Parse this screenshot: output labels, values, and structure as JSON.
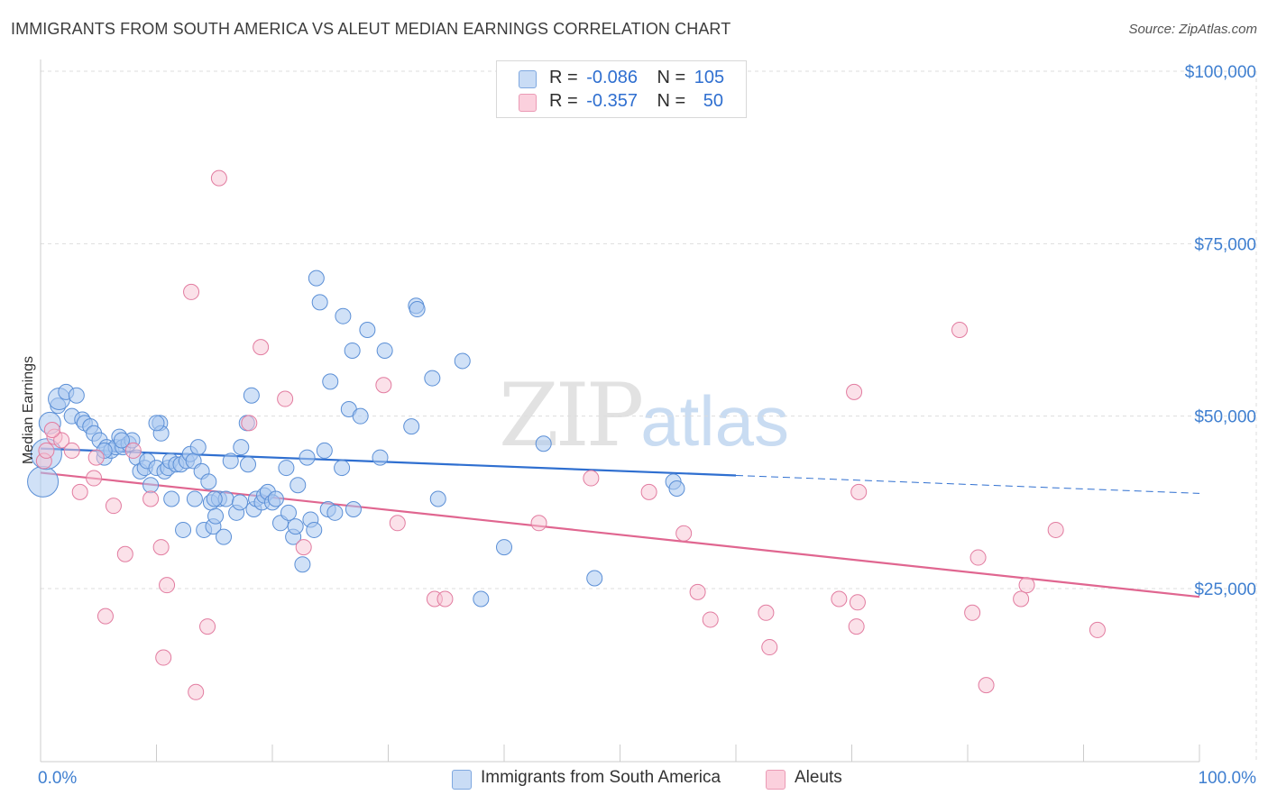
{
  "header": {
    "title": "IMMIGRANTS FROM SOUTH AMERICA VS ALEUT MEDIAN EARNINGS CORRELATION CHART",
    "source": "Source: ZipAtlas.com"
  },
  "watermark": {
    "zip": "ZIP",
    "atlas": "atlas"
  },
  "legend": {
    "rows": [
      {
        "r_label": "R =",
        "r_value": "-0.086",
        "n_label": "N =",
        "n_value": "105",
        "color": "#aac8f0"
      },
      {
        "r_label": "R =",
        "r_value": "-0.357",
        "n_label": "N =",
        "n_value": "50",
        "color": "#f5b8cc"
      }
    ]
  },
  "bottom_legend": {
    "series1": "Immigrants from South America",
    "series2": "Aleuts"
  },
  "colors": {
    "blue_fill": "#aac8f0",
    "blue_stroke": "#5b8fd6",
    "blue_line": "#2f6fd0",
    "pink_fill": "#f8c3d3",
    "pink_stroke": "#e27ca0",
    "pink_line": "#e06690",
    "grid": "#dddddd",
    "tick_text": "#3f7fd0"
  },
  "chart_data": {
    "type": "scatter",
    "title": "IMMIGRANTS FROM SOUTH AMERICA VS ALEUT MEDIAN EARNINGS CORRELATION CHART",
    "xlabel": "",
    "ylabel": "Median Earnings",
    "xlim": [
      0,
      100
    ],
    "ylim": [
      0,
      105000
    ],
    "x_tick_labels": [
      "0.0%",
      "100.0%"
    ],
    "y_ticks": [
      25000,
      50000,
      75000,
      100000
    ],
    "y_tick_labels": [
      "$25,000",
      "$50,000",
      "$75,000",
      "$100,000"
    ],
    "series": [
      {
        "name": "Immigrants from South America",
        "R": -0.086,
        "N": 105,
        "trend": {
          "x": [
            0,
            60
          ],
          "y": [
            45300,
            41400
          ],
          "dashed_x": [
            60,
            100
          ],
          "dashed_y": [
            41400,
            38800
          ]
        },
        "points": [
          [
            0.2,
            40500,
            "xl"
          ],
          [
            0.5,
            44500,
            "xl"
          ],
          [
            0.8,
            49000,
            "l"
          ],
          [
            1.5,
            51500
          ],
          [
            1.6,
            52500,
            "l"
          ],
          [
            2.2,
            53500
          ],
          [
            2.7,
            50000
          ],
          [
            3.1,
            53000
          ],
          [
            3.6,
            49500
          ],
          [
            3.8,
            49000
          ],
          [
            4.3,
            48500
          ],
          [
            4.6,
            47500
          ],
          [
            5.1,
            46500
          ],
          [
            5.5,
            44000
          ],
          [
            5.7,
            45500
          ],
          [
            6.1,
            45000
          ],
          [
            6.5,
            45500
          ],
          [
            6.8,
            47000
          ],
          [
            7.1,
            45500
          ],
          [
            7.6,
            46000
          ],
          [
            7.9,
            46500
          ],
          [
            8.3,
            44000
          ],
          [
            8.6,
            42000
          ],
          [
            9.0,
            42500
          ],
          [
            9.2,
            43500
          ],
          [
            9.5,
            40000
          ],
          [
            10.0,
            42500
          ],
          [
            10.3,
            49000
          ],
          [
            10.4,
            47500
          ],
          [
            10.7,
            42000
          ],
          [
            11.0,
            42500
          ],
          [
            11.2,
            43500
          ],
          [
            11.3,
            38000
          ],
          [
            11.7,
            43000
          ],
          [
            12.1,
            43000
          ],
          [
            12.3,
            33500
          ],
          [
            12.6,
            43500
          ],
          [
            12.9,
            44500
          ],
          [
            13.2,
            43500
          ],
          [
            13.3,
            38000
          ],
          [
            13.6,
            45500
          ],
          [
            13.9,
            42000
          ],
          [
            14.1,
            33500
          ],
          [
            14.5,
            40500
          ],
          [
            14.7,
            37500
          ],
          [
            14.9,
            34000
          ],
          [
            15.1,
            35500
          ],
          [
            15.4,
            38000
          ],
          [
            15.8,
            32500
          ],
          [
            16.0,
            38000
          ],
          [
            16.4,
            43500
          ],
          [
            16.9,
            36000
          ],
          [
            17.2,
            37500
          ],
          [
            17.3,
            45500
          ],
          [
            17.8,
            49000
          ],
          [
            17.9,
            43000
          ],
          [
            18.2,
            53000
          ],
          [
            18.4,
            36500
          ],
          [
            18.6,
            38000
          ],
          [
            19.1,
            37500
          ],
          [
            19.3,
            38500
          ],
          [
            19.6,
            39000
          ],
          [
            20.0,
            37500
          ],
          [
            20.3,
            38000
          ],
          [
            20.7,
            34500
          ],
          [
            21.2,
            42500
          ],
          [
            21.4,
            36000
          ],
          [
            21.8,
            32500
          ],
          [
            22.0,
            34000
          ],
          [
            22.2,
            40000
          ],
          [
            22.6,
            28500
          ],
          [
            23.0,
            44000
          ],
          [
            23.3,
            35000
          ],
          [
            23.6,
            33500
          ],
          [
            23.8,
            70000
          ],
          [
            24.1,
            66500
          ],
          [
            24.5,
            45000
          ],
          [
            24.8,
            36500
          ],
          [
            25.0,
            55000
          ],
          [
            25.4,
            36000
          ],
          [
            26.0,
            42500
          ],
          [
            26.1,
            64500
          ],
          [
            26.6,
            51000
          ],
          [
            26.9,
            59500
          ],
          [
            27.0,
            36500
          ],
          [
            27.6,
            50000
          ],
          [
            28.2,
            62500
          ],
          [
            29.3,
            44000
          ],
          [
            29.7,
            59500
          ],
          [
            32.0,
            48500
          ],
          [
            32.4,
            66000
          ],
          [
            32.5,
            65500
          ],
          [
            33.8,
            55500
          ],
          [
            34.3,
            38000
          ],
          [
            36.4,
            58000
          ],
          [
            38.0,
            23500
          ],
          [
            40.0,
            31000
          ],
          [
            43.4,
            46000
          ],
          [
            47.8,
            26500
          ],
          [
            54.6,
            40500
          ],
          [
            54.9,
            39500
          ],
          [
            10.0,
            49000
          ],
          [
            7.0,
            46500
          ],
          [
            5.5,
            45000
          ],
          [
            15.0,
            38000
          ]
        ]
      },
      {
        "name": "Aleuts",
        "R": -0.357,
        "N": 50,
        "trend": {
          "x": [
            0,
            100
          ],
          "y": [
            41800,
            23800
          ]
        },
        "points": [
          [
            0.3,
            43500
          ],
          [
            0.5,
            45000
          ],
          [
            1.2,
            47000
          ],
          [
            1.8,
            46500
          ],
          [
            2.7,
            45000
          ],
          [
            3.4,
            39000
          ],
          [
            4.6,
            41000
          ],
          [
            4.8,
            44000
          ],
          [
            5.6,
            21000
          ],
          [
            6.3,
            37000
          ],
          [
            7.3,
            30000
          ],
          [
            8.0,
            45000
          ],
          [
            9.5,
            38000
          ],
          [
            10.4,
            31000
          ],
          [
            10.6,
            15000
          ],
          [
            10.9,
            25500
          ],
          [
            13.0,
            68000
          ],
          [
            13.4,
            10000
          ],
          [
            14.4,
            19500
          ],
          [
            15.4,
            84500
          ],
          [
            18.0,
            49000
          ],
          [
            19.0,
            60000
          ],
          [
            21.1,
            52500
          ],
          [
            22.7,
            31000
          ],
          [
            29.6,
            54500
          ],
          [
            30.8,
            34500
          ],
          [
            34.0,
            23500
          ],
          [
            34.9,
            23500
          ],
          [
            43.0,
            34500
          ],
          [
            47.5,
            41000
          ],
          [
            52.5,
            39000
          ],
          [
            55.5,
            33000
          ],
          [
            56.7,
            24500
          ],
          [
            57.8,
            20500
          ],
          [
            62.6,
            21500
          ],
          [
            62.9,
            16500
          ],
          [
            68.9,
            23500
          ],
          [
            70.2,
            53500
          ],
          [
            70.4,
            19500
          ],
          [
            70.5,
            23000
          ],
          [
            70.6,
            39000
          ],
          [
            79.3,
            62500
          ],
          [
            80.4,
            21500
          ],
          [
            80.9,
            29500
          ],
          [
            81.6,
            11000
          ],
          [
            84.6,
            23500
          ],
          [
            85.1,
            25500
          ],
          [
            87.6,
            33500
          ],
          [
            91.2,
            19000
          ],
          [
            1.0,
            48000
          ]
        ]
      }
    ]
  }
}
